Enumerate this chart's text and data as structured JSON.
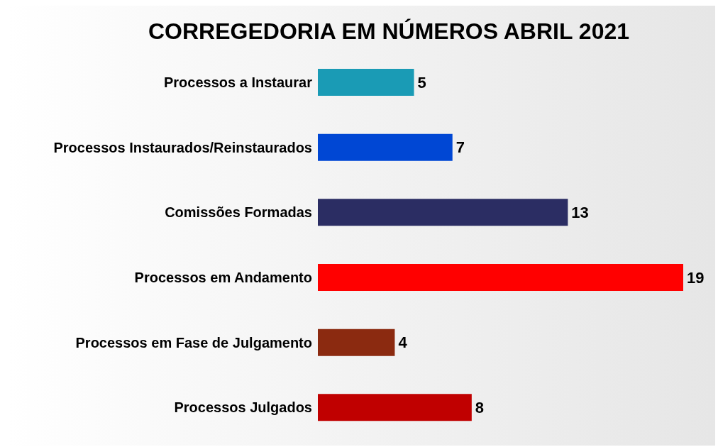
{
  "chart_data": {
    "type": "bar",
    "orientation": "horizontal",
    "title": "CORREGEDORIA EM NÚMEROS ABRIL 2021",
    "categories": [
      "Processos a Instaurar",
      "Processos Instaurados/Reinstaurados",
      "Comissões Formadas",
      "Processos em Andamento",
      "Processos em Fase de Julgamento",
      "Processos Julgados"
    ],
    "values": [
      5,
      7,
      13,
      19,
      4,
      8
    ],
    "colors": [
      "#1a9bb5",
      "#0047d4",
      "#2b2d63",
      "#ff0000",
      "#8b2a10",
      "#c00000"
    ],
    "data_labels": true
  }
}
